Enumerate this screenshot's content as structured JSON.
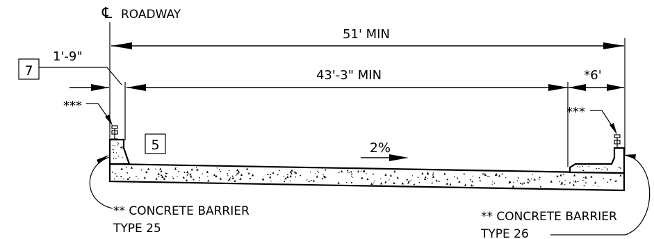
{
  "centerline": {
    "symbol": "℄",
    "label": "ROADWAY"
  },
  "dimensions": {
    "overall": "51' MIN",
    "barrier_offset": "1'-9\"",
    "clear_width": "43'-3\" MIN",
    "right_offset": "*6'"
  },
  "callouts": {
    "left_note_box": "7",
    "mid_note_box": "5",
    "left_stars": "***",
    "right_stars": "***"
  },
  "slope": {
    "label": "2%"
  },
  "barriers": {
    "left": {
      "line1": "** CONCRETE BARRIER",
      "line2": "TYPE 25"
    },
    "right": {
      "line1": "** CONCRETE BARRIER",
      "line2": "TYPE 26"
    }
  }
}
